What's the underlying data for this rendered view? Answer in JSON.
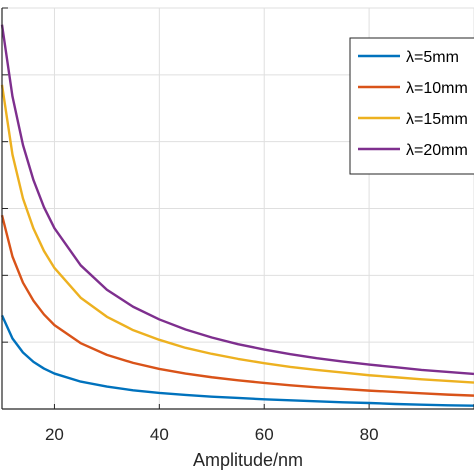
{
  "chart_data": {
    "type": "line",
    "title": "",
    "xlabel": "Amplitude/nm",
    "ylabel": "",
    "xlim": [
      10,
      100
    ],
    "ylim": [
      0,
      1.2
    ],
    "xticks": [
      20,
      40,
      60,
      80
    ],
    "yticks": [],
    "grid": true,
    "legend_position": "top-right",
    "x": [
      10,
      12,
      14,
      16,
      18,
      20,
      25,
      30,
      35,
      40,
      45,
      50,
      55,
      60,
      65,
      70,
      75,
      80,
      85,
      90,
      95,
      100
    ],
    "series": [
      {
        "name": "λ=5mm",
        "color": "#0072BD",
        "values": [
          0.28,
          0.211,
          0.169,
          0.141,
          0.121,
          0.106,
          0.082,
          0.067,
          0.056,
          0.048,
          0.042,
          0.037,
          0.033,
          0.029,
          0.026,
          0.023,
          0.02,
          0.018,
          0.015,
          0.013,
          0.011,
          0.01
        ]
      },
      {
        "name": "λ=10mm",
        "color": "#D95319",
        "values": [
          0.58,
          0.456,
          0.378,
          0.324,
          0.283,
          0.251,
          0.197,
          0.162,
          0.138,
          0.12,
          0.106,
          0.095,
          0.086,
          0.078,
          0.071,
          0.065,
          0.06,
          0.055,
          0.051,
          0.047,
          0.043,
          0.04
        ]
      },
      {
        "name": "λ=15mm",
        "color": "#EDB120",
        "values": [
          0.97,
          0.761,
          0.63,
          0.54,
          0.473,
          0.422,
          0.333,
          0.276,
          0.236,
          0.207,
          0.183,
          0.165,
          0.15,
          0.137,
          0.126,
          0.117,
          0.109,
          0.101,
          0.095,
          0.089,
          0.084,
          0.079
        ]
      },
      {
        "name": "λ=20mm",
        "color": "#7E2F8E",
        "values": [
          1.15,
          0.935,
          0.79,
          0.685,
          0.604,
          0.541,
          0.43,
          0.357,
          0.306,
          0.268,
          0.238,
          0.214,
          0.194,
          0.178,
          0.164,
          0.152,
          0.142,
          0.133,
          0.125,
          0.117,
          0.111,
          0.105
        ]
      }
    ]
  }
}
